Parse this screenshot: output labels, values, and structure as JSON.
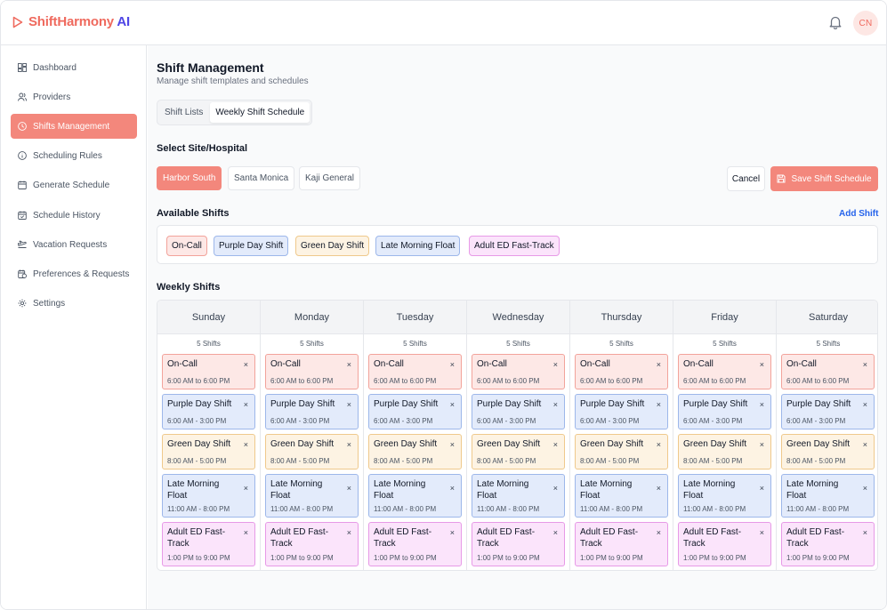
{
  "brand": {
    "name": "ShiftHarmony",
    "suffix": "AI"
  },
  "header": {
    "avatar_initials": "CN",
    "notification_icon": "bell-icon"
  },
  "sidebar": {
    "items": [
      {
        "label": "Dashboard",
        "icon": "dashboard-icon",
        "active": false
      },
      {
        "label": "Providers",
        "icon": "users-icon",
        "active": false
      },
      {
        "label": "Shifts Management",
        "icon": "clock-icon",
        "active": true
      },
      {
        "label": "Scheduling Rules",
        "icon": "info-icon",
        "active": false
      },
      {
        "label": "Generate Schedule",
        "icon": "calendar-icon",
        "active": false
      },
      {
        "label": "Schedule History",
        "icon": "calendar-check-icon",
        "active": false
      },
      {
        "label": "Vacation Requests",
        "icon": "plane-icon",
        "active": false
      },
      {
        "label": "Preferences & Requests",
        "icon": "calendar-clock-icon",
        "active": false
      },
      {
        "label": "Settings",
        "icon": "gear-icon",
        "active": false
      }
    ]
  },
  "page": {
    "title": "Shift Management",
    "subtitle": "Manage shift templates and schedules"
  },
  "tabs": [
    {
      "label": "Shift Lists",
      "active": false
    },
    {
      "label": "Weekly Shift Schedule",
      "active": true
    }
  ],
  "site_section": {
    "title": "Select Site/Hospital",
    "sites": [
      {
        "label": "Harbor South",
        "active": true
      },
      {
        "label": "Santa Monica",
        "active": false
      },
      {
        "label": "Kaji General",
        "active": false
      }
    ],
    "cancel_label": "Cancel",
    "save_label": "Save Shift Schedule"
  },
  "available": {
    "title": "Available Shifts",
    "add_label": "Add Shift",
    "shifts": [
      "On-Call",
      "Purple Day Shift",
      "Green Day Shift",
      "Late Morning Float",
      "Adult ED Fast-Track"
    ]
  },
  "weekly": {
    "title": "Weekly Shifts",
    "days": [
      {
        "name": "Sunday",
        "count": "5 Shifts"
      },
      {
        "name": "Monday",
        "count": "5 Shifts"
      },
      {
        "name": "Tuesday",
        "count": "5 Shifts"
      },
      {
        "name": "Wednesday",
        "count": "5 Shifts"
      },
      {
        "name": "Thursday",
        "count": "5 Shifts"
      },
      {
        "name": "Friday",
        "count": "5 Shifts"
      },
      {
        "name": "Saturday",
        "count": "5 Shifts"
      }
    ],
    "shifts": [
      {
        "name": "On-Call",
        "time": "6:00 AM to 6:00 PM"
      },
      {
        "name": "Purple Day Shift",
        "time": "6:00 AM - 3:00 PM"
      },
      {
        "name": "Green Day Shift",
        "time": "8:00 AM - 5:00 PM"
      },
      {
        "name": "Late Morning Float",
        "time": "11:00 AM - 8:00 PM"
      },
      {
        "name": "Adult ED Fast-Track",
        "time": "1:00 PM to 9:00 PM"
      }
    ],
    "remove_symbol": "×"
  },
  "colors": {
    "accent": "#f3877c",
    "oncall_bg": "#fde8e6",
    "oncall_border": "#f2a39b",
    "purple_bg": "#e3ebfb",
    "purple_border": "#9db7ea",
    "green_bg": "#fdf3e3",
    "green_border": "#efc98c",
    "float_bg": "#e3ebfb",
    "float_border": "#9db7ea",
    "ed_bg": "#fbe4fb",
    "ed_border": "#e79ae7"
  }
}
